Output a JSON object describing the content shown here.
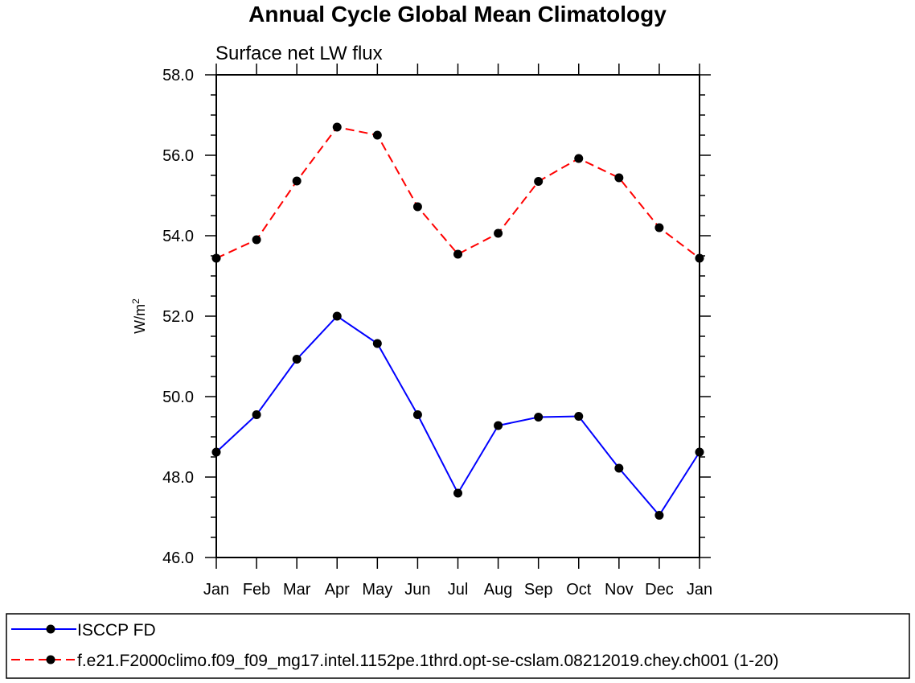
{
  "chart_data": {
    "type": "line",
    "title": "Annual Cycle Global Mean Climatology",
    "subtitle": "Surface net LW flux",
    "xlabel": "",
    "ylabel": "W/m",
    "ylabel_superscript": "2",
    "categories": [
      "Jan",
      "Feb",
      "Mar",
      "Apr",
      "May",
      "Jun",
      "Jul",
      "Aug",
      "Sep",
      "Oct",
      "Nov",
      "Dec",
      "Jan"
    ],
    "ylim": [
      46.0,
      58.0
    ],
    "yticks": [
      46.0,
      48.0,
      50.0,
      52.0,
      54.0,
      56.0,
      58.0
    ],
    "ytick_labels": [
      "46.0",
      "48.0",
      "50.0",
      "52.0",
      "54.0",
      "56.0",
      "58.0"
    ],
    "grid": false,
    "legend_placement": "bottom",
    "series": [
      {
        "name": "ISCCP FD",
        "color": "#0000ff",
        "dash": "solid",
        "values": [
          48.62,
          49.55,
          50.93,
          52.0,
          51.32,
          49.55,
          47.6,
          49.28,
          49.49,
          49.51,
          48.22,
          47.05,
          48.62
        ]
      },
      {
        "name": "f.e21.F2000climo.f09_f09_mg17.intel.1152pe.1thrd.opt-se-cslam.08212019.chey.ch001 (1-20)",
        "color": "#ff0000",
        "dash": "dashed",
        "values": [
          53.44,
          53.9,
          55.36,
          56.7,
          56.5,
          54.72,
          53.54,
          54.06,
          55.35,
          55.92,
          55.44,
          54.2,
          53.44
        ]
      }
    ]
  }
}
